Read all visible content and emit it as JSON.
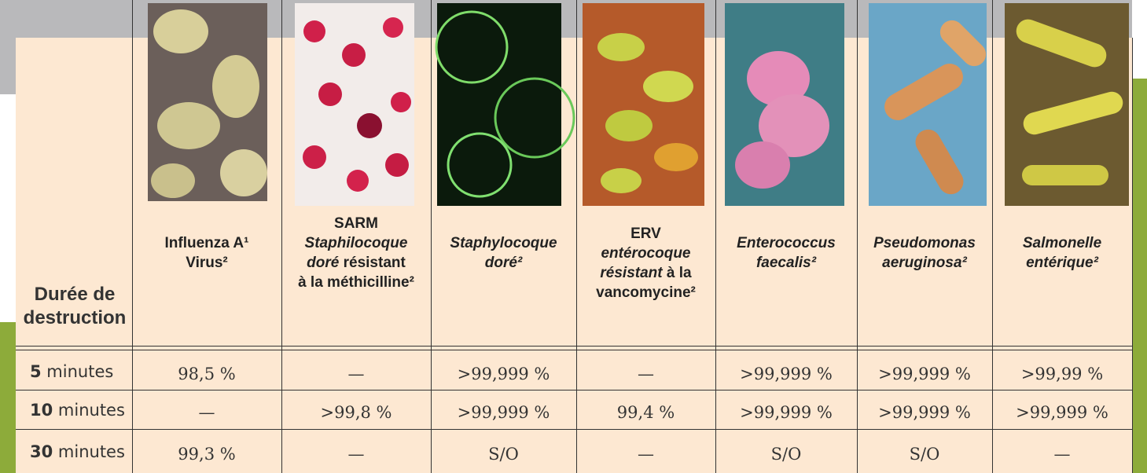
{
  "table": {
    "corner": "Durée de destruction",
    "columns": [
      [
        [
          "Influenza A¹"
        ],
        [
          "Virus²"
        ]
      ],
      [
        [
          "SARM"
        ],
        [
          "Staphilocoque"
        ],
        [
          "doré",
          " résistant"
        ],
        [
          "à la méthicilline²"
        ]
      ],
      [
        [
          "Staphylocoque"
        ],
        [
          "doré²"
        ]
      ],
      [
        [
          "ERV"
        ],
        [
          "entérocoque"
        ],
        [
          "résistant",
          " à la"
        ],
        [
          "vancomycine²"
        ]
      ],
      [
        [
          "Enterococcus"
        ],
        [
          "faecalis²"
        ]
      ],
      [
        [
          "Pseudomonas"
        ],
        [
          "aeruginosa²"
        ]
      ],
      [
        [
          "Salmonelle"
        ],
        [
          "entérique²"
        ]
      ]
    ],
    "rows": [
      {
        "duration": [
          "5",
          " minutes"
        ],
        "cells": [
          "98,5 %",
          "—",
          ">99,999 %",
          "—",
          ">99,999 %",
          ">99,999 %",
          ">99,99 %"
        ]
      },
      {
        "duration": [
          "10",
          " minutes"
        ],
        "cells": [
          "—",
          ">99,8 %",
          ">99,999 %",
          "99,4 %",
          ">99,999 %",
          ">99,999 %",
          ">99,999 %"
        ]
      },
      {
        "duration": [
          "30",
          " minutes"
        ],
        "cells": [
          "99,3 %",
          "—",
          "S/O",
          "—",
          "S/O",
          "S/O",
          "—"
        ]
      }
    ]
  }
}
